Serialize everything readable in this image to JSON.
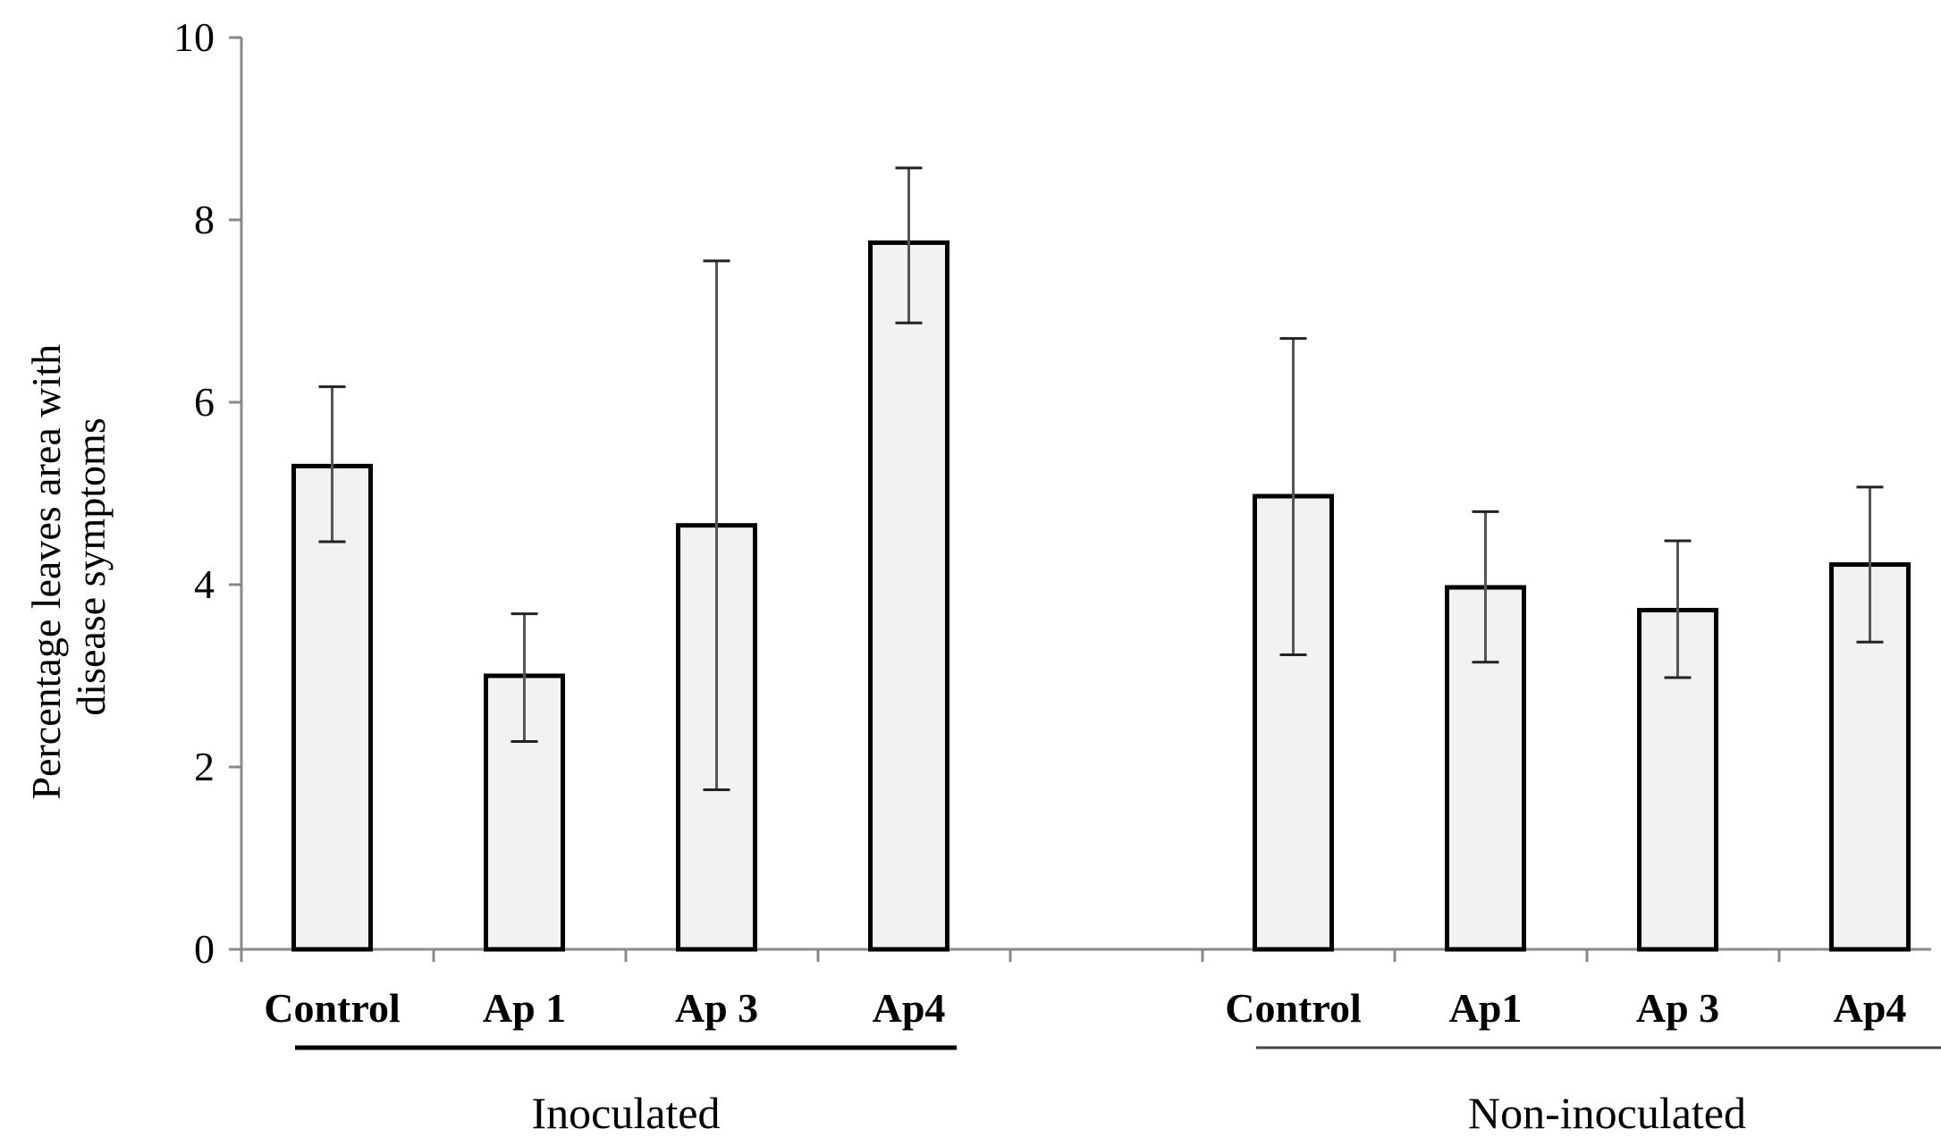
{
  "chart_data": {
    "type": "bar",
    "title": "",
    "xlabel": "",
    "ylabel_lines": [
      "Percentage leaves area with",
      "disease symptoms"
    ],
    "ylim": [
      0,
      10
    ],
    "yticks": [
      "0",
      "2",
      "4",
      "6",
      "8",
      "10"
    ],
    "grid": false,
    "legend": "none",
    "bar_color": "#f2f2f2",
    "bar_edge_color": "#000000",
    "groups": [
      {
        "name": "Inoculated",
        "bars": [
          {
            "category": "Control",
            "value": 5.3,
            "err_low": 4.47,
            "err_high": 6.17
          },
          {
            "category": "Ap 1",
            "value": 3.0,
            "err_low": 2.28,
            "err_high": 3.68
          },
          {
            "category": "Ap 3",
            "value": 4.65,
            "err_low": 1.75,
            "err_high": 7.55
          },
          {
            "category": "Ap4",
            "value": 7.75,
            "err_low": 6.87,
            "err_high": 8.57
          }
        ]
      },
      {
        "name": "Non-inoculated",
        "bars": [
          {
            "category": "Control",
            "value": 4.97,
            "err_low": 3.23,
            "err_high": 6.7
          },
          {
            "category": "Ap1",
            "value": 3.97,
            "err_low": 3.15,
            "err_high": 4.8
          },
          {
            "category": "Ap 3",
            "value": 3.72,
            "err_low": 2.98,
            "err_high": 4.48
          },
          {
            "category": "Ap4",
            "value": 4.22,
            "err_low": 3.37,
            "err_high": 5.07
          }
        ]
      }
    ]
  }
}
